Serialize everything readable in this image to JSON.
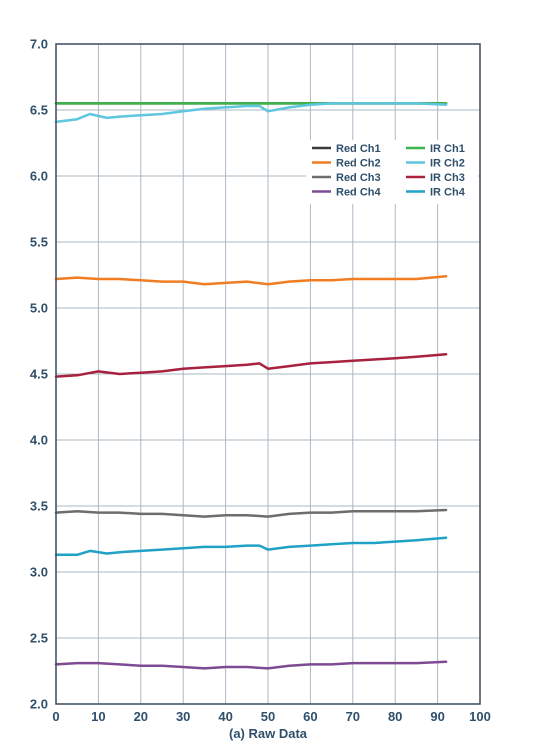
{
  "chart_data": {
    "type": "line",
    "title": "",
    "xlabel": "(a) Raw Data",
    "ylabel": "",
    "xlim": [
      0,
      100
    ],
    "ylim": [
      2.0,
      7.0
    ],
    "xticks": [
      "0",
      "10",
      "20",
      "30",
      "40",
      "50",
      "60",
      "70",
      "80",
      "90",
      "100"
    ],
    "yticks": [
      "2.0",
      "2.5",
      "3.0",
      "3.5",
      "4.0",
      "4.5",
      "5.0",
      "5.5",
      "6.0",
      "6.5",
      "7.0"
    ],
    "grid": true,
    "legend_position": "upper-right",
    "series": [
      {
        "name": "Red Ch1",
        "color": "#3a3a3a",
        "x": [
          0,
          10,
          20,
          30,
          40,
          50,
          60,
          70,
          80,
          92
        ],
        "y": [
          6.55,
          6.55,
          6.55,
          6.55,
          6.55,
          6.55,
          6.55,
          6.55,
          6.55,
          6.55
        ]
      },
      {
        "name": "Red Ch2",
        "color": "#f07d22",
        "x": [
          0,
          5,
          10,
          15,
          20,
          25,
          30,
          35,
          40,
          45,
          50,
          55,
          60,
          65,
          70,
          75,
          80,
          85,
          92
        ],
        "y": [
          5.22,
          5.23,
          5.22,
          5.22,
          5.21,
          5.2,
          5.2,
          5.18,
          5.19,
          5.2,
          5.18,
          5.2,
          5.21,
          5.21,
          5.22,
          5.22,
          5.22,
          5.22,
          5.24
        ]
      },
      {
        "name": "Red Ch3",
        "color": "#6d6d6d",
        "x": [
          0,
          5,
          10,
          15,
          20,
          25,
          30,
          35,
          40,
          45,
          50,
          55,
          60,
          65,
          70,
          75,
          80,
          85,
          92
        ],
        "y": [
          3.45,
          3.46,
          3.45,
          3.45,
          3.44,
          3.44,
          3.43,
          3.42,
          3.43,
          3.43,
          3.42,
          3.44,
          3.45,
          3.45,
          3.46,
          3.46,
          3.46,
          3.46,
          3.47
        ]
      },
      {
        "name": "Red Ch4",
        "color": "#7e4b93",
        "x": [
          0,
          5,
          10,
          15,
          20,
          25,
          30,
          35,
          40,
          45,
          50,
          55,
          60,
          65,
          70,
          75,
          80,
          85,
          92
        ],
        "y": [
          2.3,
          2.31,
          2.31,
          2.3,
          2.29,
          2.29,
          2.28,
          2.27,
          2.28,
          2.28,
          2.27,
          2.29,
          2.3,
          2.3,
          2.31,
          2.31,
          2.31,
          2.31,
          2.32
        ]
      },
      {
        "name": "IR Ch1",
        "color": "#3cb54a",
        "x": [
          0,
          10,
          20,
          30,
          40,
          50,
          60,
          70,
          80,
          92
        ],
        "y": [
          6.55,
          6.55,
          6.55,
          6.55,
          6.55,
          6.55,
          6.55,
          6.55,
          6.55,
          6.55
        ]
      },
      {
        "name": "IR Ch2",
        "color": "#5ec6df",
        "x": [
          0,
          5,
          8,
          12,
          15,
          20,
          25,
          30,
          35,
          40,
          45,
          48,
          50,
          55,
          60,
          65,
          70,
          75,
          80,
          85,
          92
        ],
        "y": [
          6.41,
          6.43,
          6.47,
          6.44,
          6.45,
          6.46,
          6.47,
          6.49,
          6.51,
          6.52,
          6.53,
          6.53,
          6.49,
          6.52,
          6.54,
          6.55,
          6.55,
          6.55,
          6.55,
          6.55,
          6.54
        ]
      },
      {
        "name": "IR Ch3",
        "color": "#a8213e",
        "x": [
          0,
          5,
          10,
          15,
          20,
          25,
          30,
          35,
          40,
          45,
          48,
          50,
          55,
          60,
          65,
          70,
          75,
          80,
          85,
          92
        ],
        "y": [
          4.48,
          4.49,
          4.52,
          4.5,
          4.51,
          4.52,
          4.54,
          4.55,
          4.56,
          4.57,
          4.58,
          4.54,
          4.56,
          4.58,
          4.59,
          4.6,
          4.61,
          4.62,
          4.63,
          4.65
        ]
      },
      {
        "name": "IR Ch4",
        "color": "#1fa2c5",
        "x": [
          0,
          5,
          8,
          12,
          15,
          20,
          25,
          30,
          35,
          40,
          45,
          48,
          50,
          55,
          60,
          65,
          70,
          75,
          80,
          85,
          92
        ],
        "y": [
          3.13,
          3.13,
          3.16,
          3.14,
          3.15,
          3.16,
          3.17,
          3.18,
          3.19,
          3.19,
          3.2,
          3.2,
          3.17,
          3.19,
          3.2,
          3.21,
          3.22,
          3.22,
          3.23,
          3.24,
          3.26
        ]
      }
    ]
  }
}
